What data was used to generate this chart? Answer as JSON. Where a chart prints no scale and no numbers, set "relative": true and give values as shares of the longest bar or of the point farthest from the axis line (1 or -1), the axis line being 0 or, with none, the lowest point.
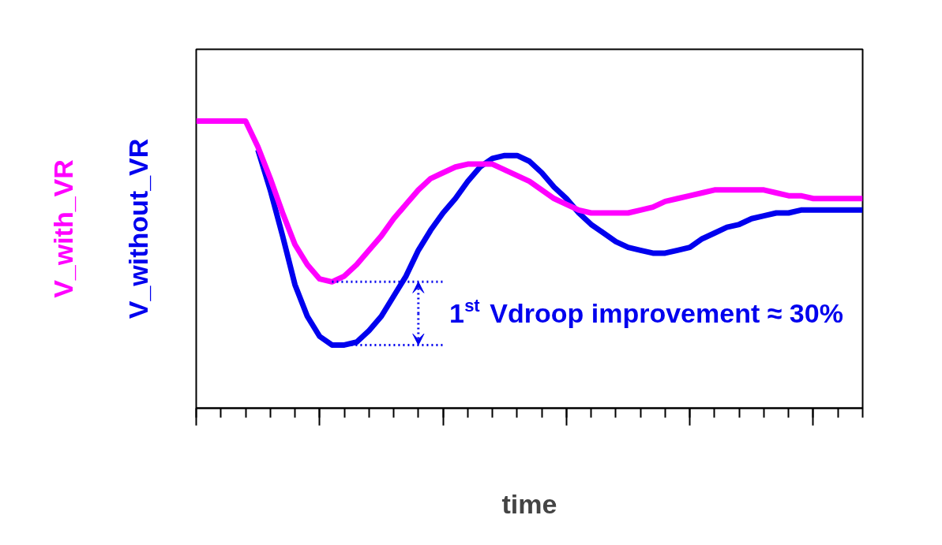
{
  "chart_data": {
    "type": "line",
    "relative": true,
    "xlabel": "time",
    "grid": false,
    "line_style": "solid",
    "marker": "none",
    "categories": [
      null,
      null,
      null,
      null,
      null,
      null,
      null,
      null,
      null,
      null,
      null,
      null,
      null,
      null,
      null,
      null,
      null,
      null,
      null,
      null,
      null,
      null,
      null,
      null,
      null,
      null,
      null,
      null,
      null,
      null,
      null,
      null,
      null,
      null,
      null,
      null,
      null,
      null,
      null,
      null,
      null,
      null,
      null,
      null,
      null,
      null,
      null,
      null,
      null,
      null,
      null,
      null,
      null,
      null,
      null
    ],
    "series": [
      {
        "name": "V_with_VR",
        "color": "#ff00ff",
        "values": [
          1,
          1,
          1,
          1,
          1,
          0.91,
          0.8,
          0.68,
          0.57,
          0.5,
          0.45,
          0.44,
          0.46,
          0.5,
          0.55,
          0.6,
          0.66,
          0.71,
          0.76,
          0.8,
          0.82,
          0.84,
          0.85,
          0.85,
          0.85,
          0.83,
          0.81,
          0.79,
          0.76,
          0.73,
          0.71,
          0.69,
          0.68,
          0.68,
          0.68,
          0.68,
          0.69,
          0.7,
          0.72,
          0.73,
          0.74,
          0.75,
          0.76,
          0.76,
          0.76,
          0.76,
          0.76,
          0.75,
          0.74,
          0.74,
          0.73,
          0.73,
          0.73,
          0.73,
          0.73
        ]
      },
      {
        "name": "V_without_VR",
        "color": "#0000ee",
        "values": [
          null,
          null,
          null,
          null,
          null,
          0.9,
          0.76,
          0.6,
          0.43,
          0.32,
          0.25,
          0.22,
          0.22,
          0.23,
          0.27,
          0.32,
          0.39,
          0.46,
          0.55,
          0.62,
          0.68,
          0.73,
          0.79,
          0.84,
          0.87,
          0.88,
          0.88,
          0.86,
          0.82,
          0.77,
          0.73,
          0.68,
          0.64,
          0.61,
          0.58,
          0.56,
          0.55,
          0.54,
          0.54,
          0.55,
          0.56,
          0.59,
          0.61,
          0.63,
          0.64,
          0.66,
          0.67,
          0.68,
          0.68,
          0.69,
          0.69,
          0.69,
          0.69,
          0.69,
          0.69
        ]
      }
    ],
    "annotations": [
      "1$^{st}$ Vdroop improvement ≈ 30%"
    ]
  }
}
